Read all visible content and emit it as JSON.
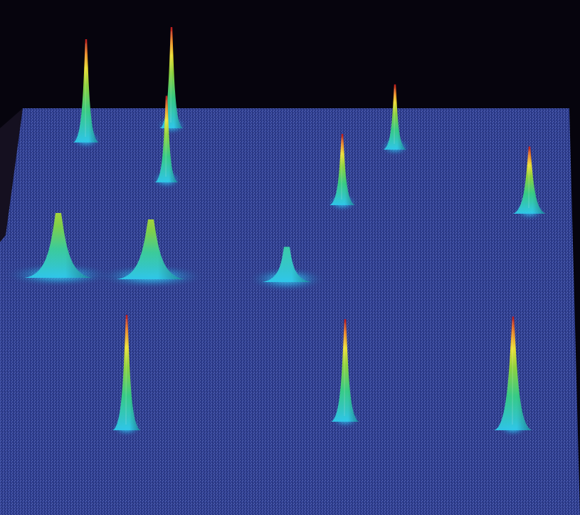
{
  "image": {
    "subject": "surface-plot",
    "background_color": "#06040d",
    "surface_color": "#2d3c8c",
    "colormap": [
      "#1a3a9a",
      "#2fc6ea",
      "#37cf86",
      "#8fd63c",
      "#f2e331",
      "#f08a22",
      "#c2171e"
    ],
    "peaks": [
      {
        "id": "peak-1",
        "height": 1.0,
        "spread": 1.0,
        "shape": "spike"
      },
      {
        "id": "peak-2",
        "height": 1.0,
        "spread": 0.9,
        "shape": "spike"
      },
      {
        "id": "peak-3",
        "height": 0.9,
        "spread": 0.9,
        "shape": "spike"
      },
      {
        "id": "peak-4",
        "height": 0.75,
        "spread": 0.9,
        "shape": "spike"
      },
      {
        "id": "peak-5",
        "height": 0.8,
        "spread": 1.0,
        "shape": "spike"
      },
      {
        "id": "peak-6",
        "height": 0.8,
        "spread": 1.3,
        "shape": "spike"
      },
      {
        "id": "peak-7",
        "height": 0.65,
        "spread": 2.8,
        "shape": "mound"
      },
      {
        "id": "peak-8",
        "height": 0.6,
        "spread": 2.8,
        "shape": "mound"
      },
      {
        "id": "peak-9",
        "height": 0.3,
        "spread": 2.0,
        "shape": "mound"
      },
      {
        "id": "peak-10",
        "height": 1.0,
        "spread": 1.1,
        "shape": "spike"
      },
      {
        "id": "peak-11",
        "height": 0.9,
        "spread": 1.1,
        "shape": "spike"
      },
      {
        "id": "peak-12",
        "height": 0.95,
        "spread": 1.5,
        "shape": "spike"
      }
    ]
  }
}
